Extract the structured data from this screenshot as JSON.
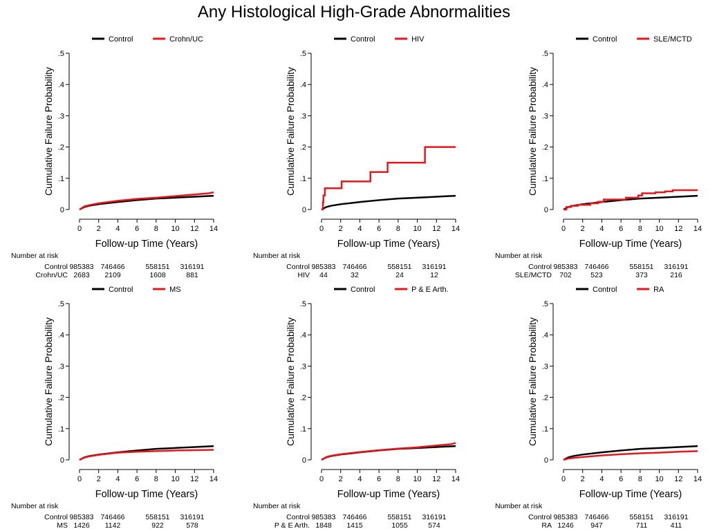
{
  "title": "Any Histological High-Grade Abnormalities",
  "colors": {
    "control": "#000000",
    "comparison": "#e8161b",
    "axis": "#000000"
  },
  "chart_data": [
    {
      "type": "line",
      "xlabel": "Follow-up Time (Years)",
      "ylabel": "Cumulative Failure Probability",
      "xlim": [
        0,
        14
      ],
      "ylim": [
        0,
        0.5
      ],
      "xticks": [
        "0",
        "2",
        "4",
        "6",
        "8",
        "10",
        "12",
        "14"
      ],
      "yticks": [
        ".5",
        ".4",
        ".3",
        ".2",
        ".1",
        "0"
      ],
      "legend": "top",
      "series": [
        {
          "name": "Control",
          "x": [
            0,
            0.5,
            1,
            2,
            4,
            6,
            8,
            10,
            12,
            14
          ],
          "y": [
            0,
            0.008,
            0.012,
            0.017,
            0.024,
            0.03,
            0.035,
            0.038,
            0.041,
            0.044
          ]
        },
        {
          "name": "Crohn/UC",
          "x": [
            0,
            0.5,
            1,
            2,
            4,
            6,
            8,
            10,
            12,
            13.5,
            14
          ],
          "y": [
            0,
            0.01,
            0.014,
            0.02,
            0.028,
            0.034,
            0.038,
            0.043,
            0.048,
            0.052,
            0.055
          ]
        }
      ],
      "risk_table": {
        "header": "Number at risk",
        "rows": [
          [
            "Control",
            "985383",
            "746466",
            "558151",
            "316191"
          ],
          [
            "Crohn/UC",
            "2683",
            "2109",
            "1608",
            "881"
          ]
        ]
      }
    },
    {
      "type": "line",
      "xlabel": "Follow-up Time (Years)",
      "ylabel": "Cumulative Failure Probability",
      "xlim": [
        0,
        14
      ],
      "ylim": [
        0,
        0.5
      ],
      "xticks": [
        "0",
        "2",
        "4",
        "6",
        "8",
        "10",
        "12",
        "14"
      ],
      "yticks": [
        ".5",
        ".4",
        ".3",
        ".2",
        ".1",
        "0"
      ],
      "legend": "top",
      "series": [
        {
          "name": "Control",
          "x": [
            0,
            0.5,
            1,
            2,
            4,
            6,
            8,
            10,
            12,
            14
          ],
          "y": [
            0,
            0.008,
            0.012,
            0.017,
            0.024,
            0.03,
            0.035,
            0.038,
            0.041,
            0.044
          ]
        },
        {
          "name": "HIV",
          "step": true,
          "x": [
            0,
            0.15,
            0.2,
            0.35,
            2.1,
            5.1,
            6.9,
            10.8,
            14
          ],
          "y": [
            0,
            0.023,
            0.045,
            0.068,
            0.09,
            0.12,
            0.15,
            0.2,
            0.2
          ]
        }
      ],
      "risk_table": {
        "header": "Number at risk",
        "rows": [
          [
            "Control",
            "985383",
            "746466",
            "558151",
            "316191"
          ],
          [
            "HIV",
            "44",
            "32",
            "24",
            "12"
          ]
        ]
      }
    },
    {
      "type": "line",
      "xlabel": "Follow-up Time (Years)",
      "ylabel": "Cumulative Failure Probability",
      "xlim": [
        0,
        14
      ],
      "ylim": [
        0,
        0.5
      ],
      "xticks": [
        "0",
        "2",
        "4",
        "6",
        "8",
        "10",
        "12",
        "14"
      ],
      "yticks": [
        ".5",
        ".4",
        ".3",
        ".2",
        ".1",
        "0"
      ],
      "legend": "top",
      "series": [
        {
          "name": "Control",
          "x": [
            0,
            0.5,
            1,
            2,
            4,
            6,
            8,
            10,
            12,
            14
          ],
          "y": [
            0,
            0.008,
            0.012,
            0.017,
            0.024,
            0.03,
            0.035,
            0.038,
            0.041,
            0.044
          ]
        },
        {
          "name": "SLE/MCTD",
          "step": true,
          "x": [
            0,
            0.3,
            0.8,
            1.5,
            2.8,
            3.6,
            4.2,
            6.5,
            7.8,
            8.2,
            9.6,
            10.6,
            11.4,
            14
          ],
          "y": [
            0,
            0.008,
            0.012,
            0.015,
            0.02,
            0.025,
            0.032,
            0.038,
            0.045,
            0.052,
            0.055,
            0.058,
            0.062,
            0.062
          ]
        }
      ],
      "risk_table": {
        "header": "Number at risk",
        "rows": [
          [
            "Control",
            "985383",
            "746466",
            "558151",
            "316191"
          ],
          [
            "SLE/MCTD",
            "702",
            "523",
            "373",
            "216"
          ]
        ]
      }
    },
    {
      "type": "line",
      "xlabel": "Follow-up Time (Years)",
      "ylabel": "Cumulative Failure Probability",
      "xlim": [
        0,
        14
      ],
      "ylim": [
        0,
        0.5
      ],
      "xticks": [
        "0",
        "2",
        "4",
        "6",
        "8",
        "10",
        "12",
        "14"
      ],
      "yticks": [
        ".5",
        ".4",
        ".3",
        ".2",
        ".1",
        "0"
      ],
      "legend": "top",
      "series": [
        {
          "name": "Control",
          "x": [
            0,
            0.5,
            1,
            2,
            4,
            6,
            8,
            10,
            12,
            14
          ],
          "y": [
            0,
            0.008,
            0.012,
            0.017,
            0.024,
            0.03,
            0.035,
            0.038,
            0.041,
            0.044
          ]
        },
        {
          "name": "MS",
          "x": [
            0,
            0.5,
            1,
            2,
            4,
            6,
            8,
            10,
            12,
            14
          ],
          "y": [
            0,
            0.007,
            0.011,
            0.016,
            0.023,
            0.026,
            0.028,
            0.03,
            0.031,
            0.032
          ]
        }
      ],
      "risk_table": {
        "header": "Number at risk",
        "rows": [
          [
            "Control",
            "985383",
            "746466",
            "558151",
            "316191"
          ],
          [
            "MS",
            "1426",
            "1142",
            "922",
            "578"
          ]
        ]
      }
    },
    {
      "type": "line",
      "xlabel": "Follow-up Time (Years)",
      "ylabel": "Cumulative Failure Probability",
      "xlim": [
        0,
        14
      ],
      "ylim": [
        0,
        0.5
      ],
      "xticks": [
        "0",
        "2",
        "4",
        "6",
        "8",
        "10",
        "12",
        "14"
      ],
      "yticks": [
        ".5",
        ".4",
        ".3",
        ".2",
        ".1",
        "0"
      ],
      "legend": "top",
      "series": [
        {
          "name": "Control",
          "x": [
            0,
            0.5,
            1,
            2,
            4,
            6,
            8,
            10,
            12,
            14
          ],
          "y": [
            0,
            0.008,
            0.012,
            0.017,
            0.024,
            0.03,
            0.035,
            0.038,
            0.041,
            0.044
          ]
        },
        {
          "name": "P & E Arth.",
          "x": [
            0,
            0.5,
            1,
            2,
            4,
            6,
            8,
            10,
            12,
            13.5,
            14
          ],
          "y": [
            0,
            0.009,
            0.013,
            0.018,
            0.025,
            0.031,
            0.036,
            0.04,
            0.046,
            0.05,
            0.054
          ]
        }
      ],
      "risk_table": {
        "header": "Number at risk",
        "rows": [
          [
            "Control",
            "985383",
            "746466",
            "558151",
            "316191"
          ],
          [
            "P & E Arth.",
            "1848",
            "1415",
            "1055",
            "574"
          ]
        ]
      }
    },
    {
      "type": "line",
      "xlabel": "Follow-up Time (Years)",
      "ylabel": "Cumulative Failure Probability",
      "xlim": [
        0,
        14
      ],
      "ylim": [
        0,
        0.5
      ],
      "xticks": [
        "0",
        "2",
        "4",
        "6",
        "8",
        "10",
        "12",
        "14"
      ],
      "yticks": [
        ".5",
        ".4",
        ".3",
        ".2",
        ".1",
        "0"
      ],
      "legend": "top",
      "series": [
        {
          "name": "Control",
          "x": [
            0,
            0.5,
            1,
            2,
            4,
            6,
            8,
            10,
            12,
            14
          ],
          "y": [
            0,
            0.008,
            0.012,
            0.017,
            0.024,
            0.03,
            0.035,
            0.038,
            0.041,
            0.044
          ]
        },
        {
          "name": "RA",
          "x": [
            0,
            0.5,
            1,
            2,
            4,
            6,
            8,
            10,
            12,
            14
          ],
          "y": [
            0,
            0.004,
            0.006,
            0.009,
            0.014,
            0.018,
            0.021,
            0.023,
            0.026,
            0.028
          ]
        }
      ],
      "risk_table": {
        "header": "Number at risk",
        "rows": [
          [
            "Control",
            "985383",
            "746466",
            "558151",
            "316191"
          ],
          [
            "RA",
            "1246",
            "947",
            "711",
            "411"
          ]
        ]
      }
    }
  ]
}
